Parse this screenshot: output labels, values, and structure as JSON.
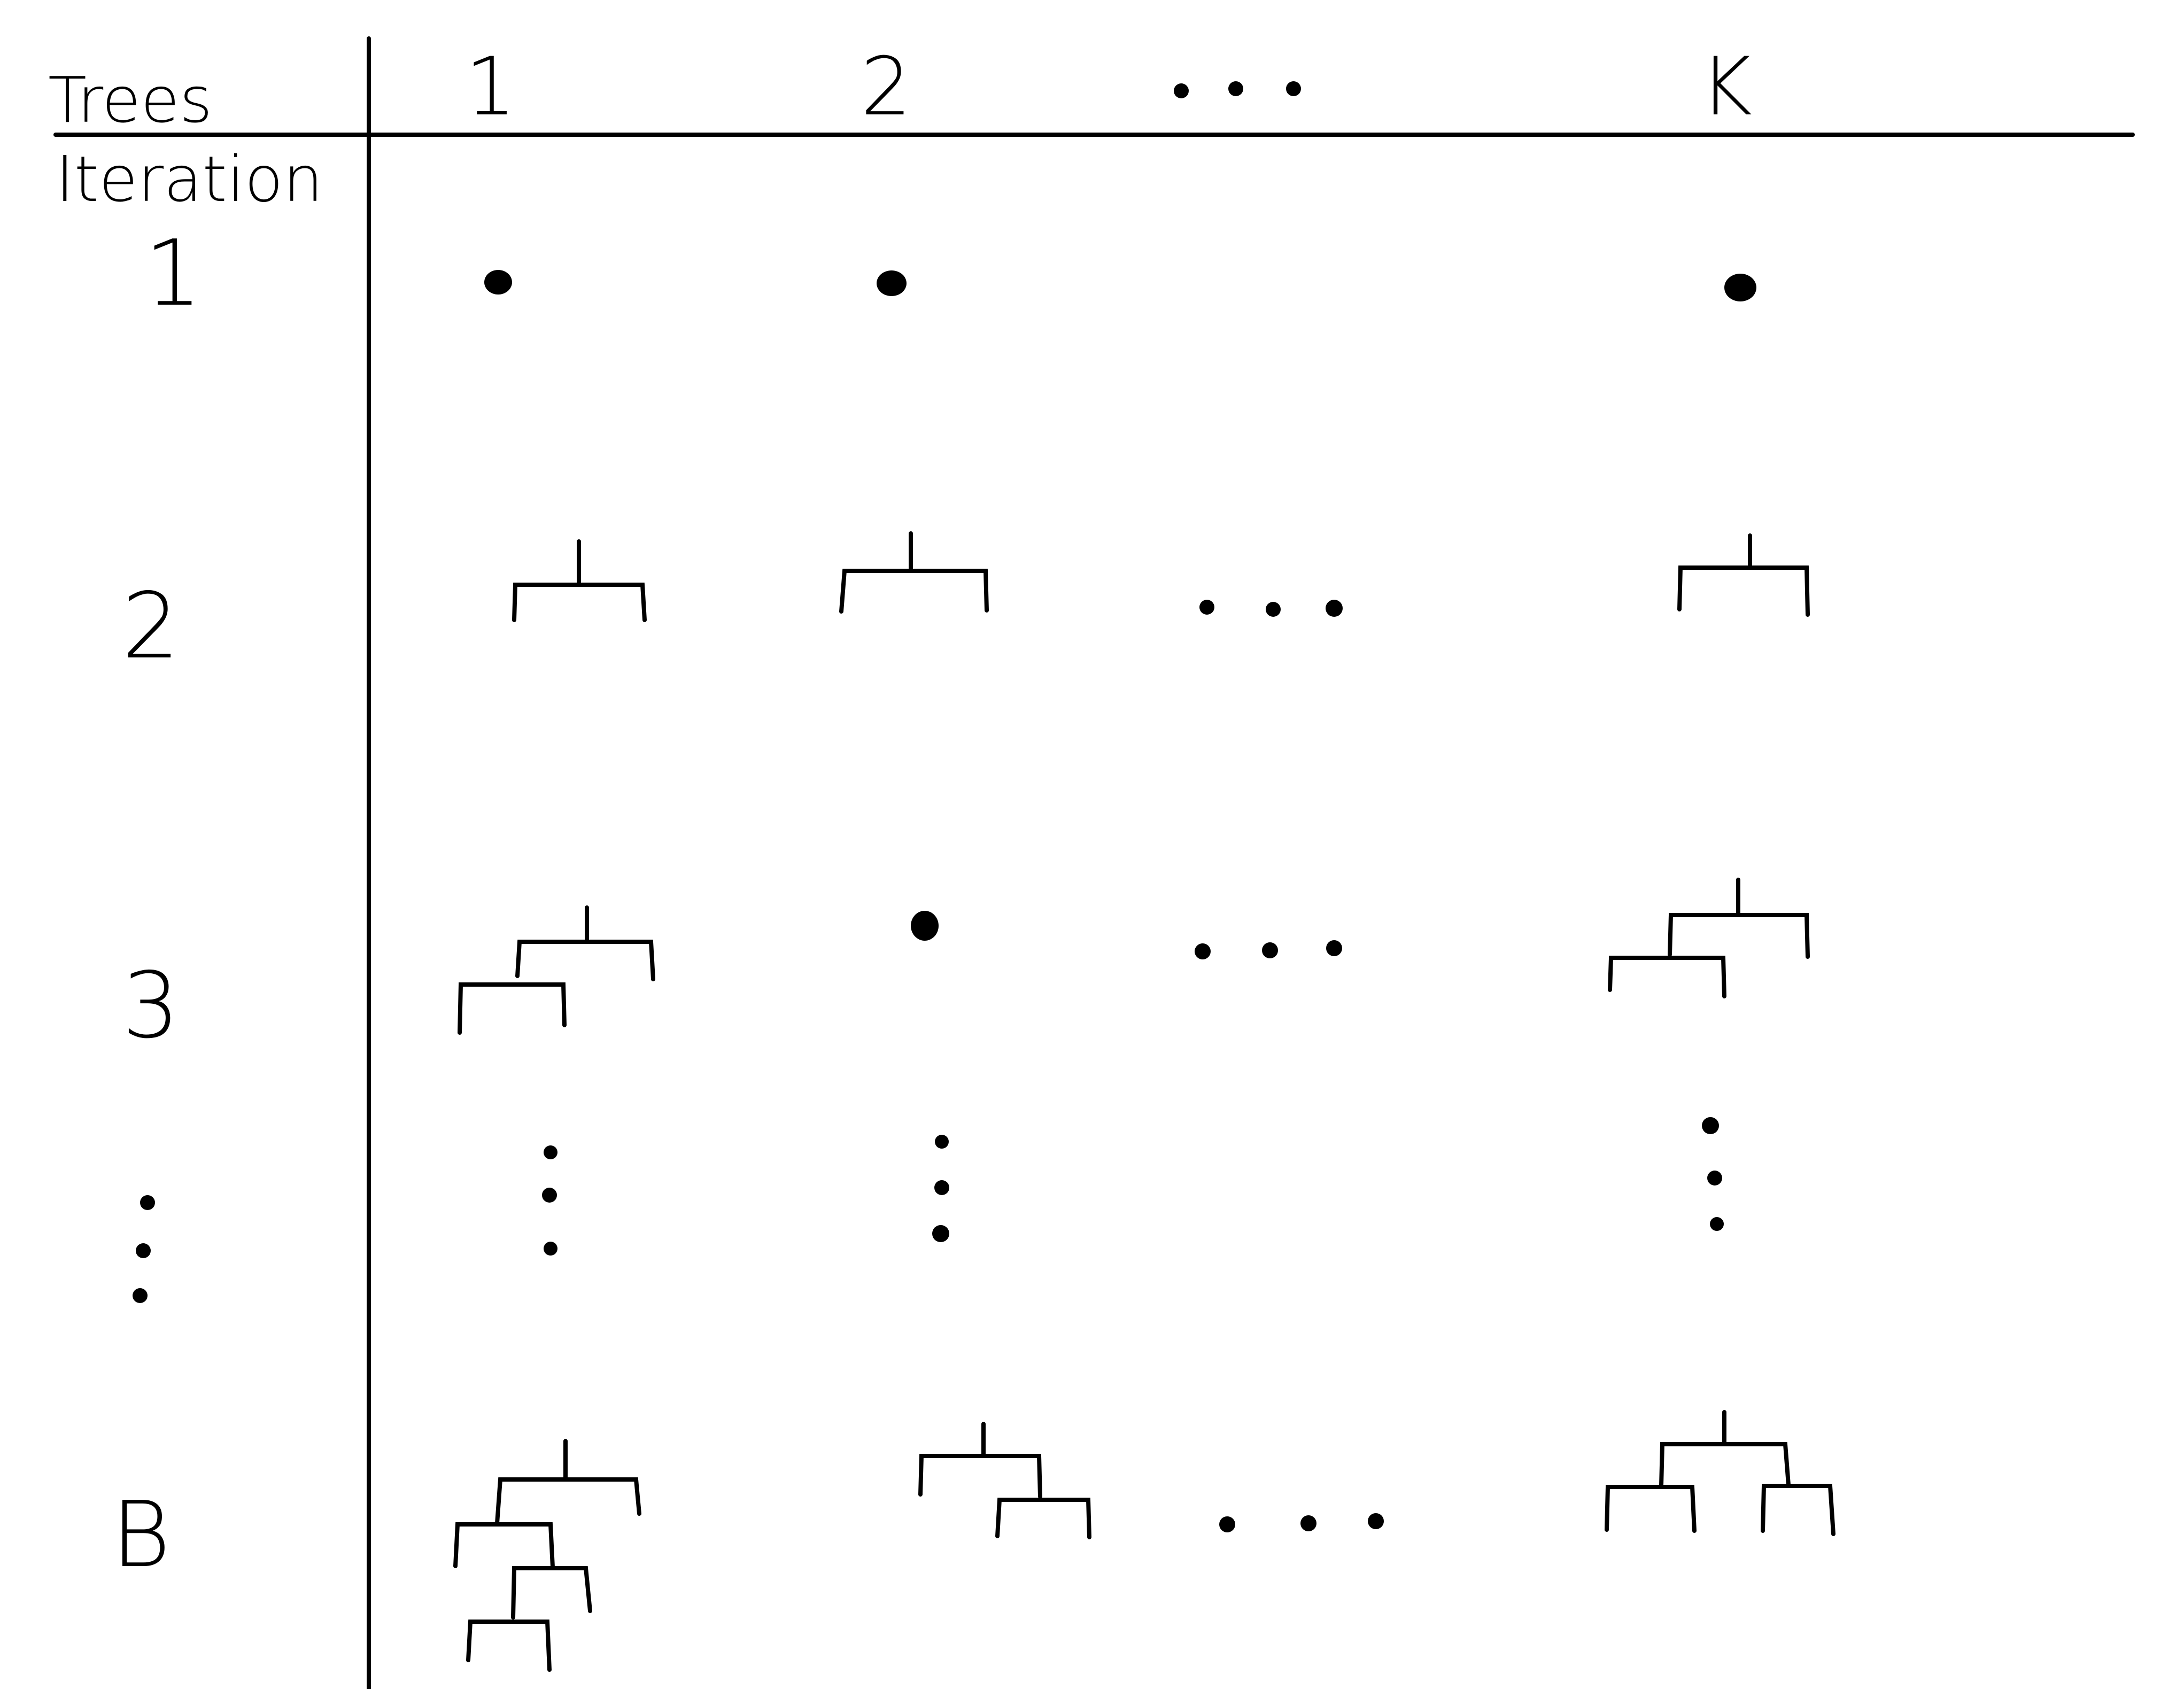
{
  "table": {
    "column_header": "Trees",
    "row_header": "Iteration",
    "columns": [
      "1",
      "2",
      "K"
    ],
    "rows": [
      "1",
      "2",
      "3",
      "B"
    ]
  },
  "cells": {
    "iter1": [
      "single-node",
      "single-node",
      "single-node"
    ],
    "iter2": [
      "one-split-tree",
      "one-split-tree",
      "ellipsis",
      "one-split-tree"
    ],
    "iter3": [
      "two-split-tree",
      "single-node",
      "ellipsis",
      "two-split-tree"
    ],
    "iterB": [
      "four-split-tree",
      "two-split-tree",
      "ellipsis",
      "three-split-tree"
    ]
  },
  "colors": {
    "ink": "#000000",
    "background": "#ffffff"
  }
}
